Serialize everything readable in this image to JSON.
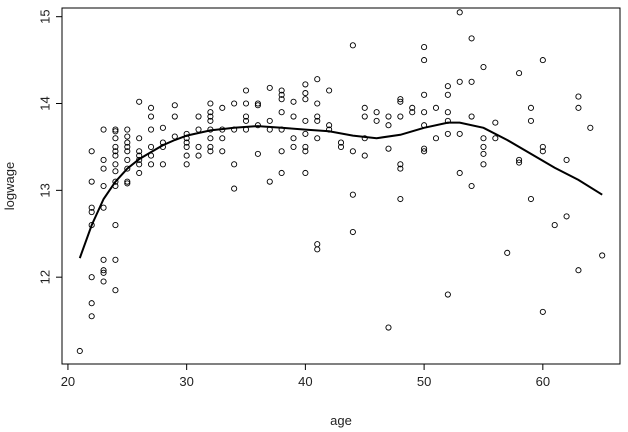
{
  "chart_data": {
    "type": "scatter",
    "title": "",
    "xlabel": "age",
    "ylabel": "logwage",
    "xlim": [
      19.5,
      66.5
    ],
    "ylim": [
      11,
      15.1
    ],
    "xticks": [
      20,
      30,
      40,
      50,
      60
    ],
    "yticks": [
      12,
      13,
      14,
      15
    ],
    "x_tick_labels": [
      "20",
      "30",
      "40",
      "50",
      "60"
    ],
    "y_tick_labels": [
      "12",
      "13",
      "14",
      "15"
    ],
    "grid": false,
    "legend": "none",
    "point_color": "#000000",
    "curve_color": "#000000",
    "points": [
      [
        21,
        11.15
      ],
      [
        22,
        13.45
      ],
      [
        22,
        13.1
      ],
      [
        22,
        12.8
      ],
      [
        22,
        12.75
      ],
      [
        22,
        12.6
      ],
      [
        22,
        12.0
      ],
      [
        22,
        11.7
      ],
      [
        22,
        11.55
      ],
      [
        23,
        13.7
      ],
      [
        23,
        13.35
      ],
      [
        23,
        13.25
      ],
      [
        23,
        13.05
      ],
      [
        23,
        12.8
      ],
      [
        23,
        12.2
      ],
      [
        23,
        12.08
      ],
      [
        23,
        12.05
      ],
      [
        23,
        11.95
      ],
      [
        24,
        13.7
      ],
      [
        24,
        13.68
      ],
      [
        24,
        13.6
      ],
      [
        24,
        13.5
      ],
      [
        24,
        13.45
      ],
      [
        24,
        13.4
      ],
      [
        24,
        13.3
      ],
      [
        24,
        13.22
      ],
      [
        24,
        13.1
      ],
      [
        24,
        13.05
      ],
      [
        24,
        12.6
      ],
      [
        24,
        12.2
      ],
      [
        24,
        11.85
      ],
      [
        25,
        13.7
      ],
      [
        25,
        13.62
      ],
      [
        25,
        13.55
      ],
      [
        25,
        13.5
      ],
      [
        25,
        13.45
      ],
      [
        25,
        13.35
      ],
      [
        25,
        13.25
      ],
      [
        25,
        13.1
      ],
      [
        25,
        13.08
      ],
      [
        26,
        14.02
      ],
      [
        26,
        13.6
      ],
      [
        26,
        13.45
      ],
      [
        26,
        13.4
      ],
      [
        26,
        13.35
      ],
      [
        26,
        13.3
      ],
      [
        26,
        13.2
      ],
      [
        27,
        13.95
      ],
      [
        27,
        13.85
      ],
      [
        27,
        13.7
      ],
      [
        27,
        13.5
      ],
      [
        27,
        13.4
      ],
      [
        27,
        13.3
      ],
      [
        28,
        13.72
      ],
      [
        28,
        13.55
      ],
      [
        28,
        13.5
      ],
      [
        28,
        13.3
      ],
      [
        29,
        13.98
      ],
      [
        29,
        13.85
      ],
      [
        29,
        13.62
      ],
      [
        30,
        13.65
      ],
      [
        30,
        13.6
      ],
      [
        30,
        13.55
      ],
      [
        30,
        13.5
      ],
      [
        30,
        13.4
      ],
      [
        30,
        13.3
      ],
      [
        31,
        13.85
      ],
      [
        31,
        13.7
      ],
      [
        31,
        13.5
      ],
      [
        31,
        13.4
      ],
      [
        32,
        14.0
      ],
      [
        32,
        13.9
      ],
      [
        32,
        13.85
      ],
      [
        32,
        13.8
      ],
      [
        32,
        13.7
      ],
      [
        32,
        13.6
      ],
      [
        32,
        13.5
      ],
      [
        32,
        13.45
      ],
      [
        33,
        13.95
      ],
      [
        33,
        13.7
      ],
      [
        33,
        13.6
      ],
      [
        33,
        13.45
      ],
      [
        34,
        14.0
      ],
      [
        34,
        13.7
      ],
      [
        34,
        13.3
      ],
      [
        34,
        13.02
      ],
      [
        35,
        14.15
      ],
      [
        35,
        14.0
      ],
      [
        35,
        13.85
      ],
      [
        35,
        13.8
      ],
      [
        35,
        13.7
      ],
      [
        36,
        14.0
      ],
      [
        36,
        13.98
      ],
      [
        36,
        13.75
      ],
      [
        36,
        13.42
      ],
      [
        37,
        14.18
      ],
      [
        37,
        13.8
      ],
      [
        37,
        13.7
      ],
      [
        37,
        13.1
      ],
      [
        38,
        14.15
      ],
      [
        38,
        14.1
      ],
      [
        38,
        14.05
      ],
      [
        38,
        13.9
      ],
      [
        38,
        13.7
      ],
      [
        38,
        13.45
      ],
      [
        38,
        13.2
      ],
      [
        39,
        14.02
      ],
      [
        39,
        13.85
      ],
      [
        39,
        13.6
      ],
      [
        39,
        13.5
      ],
      [
        40,
        14.22
      ],
      [
        40,
        14.12
      ],
      [
        40,
        14.05
      ],
      [
        40,
        13.8
      ],
      [
        40,
        13.65
      ],
      [
        40,
        13.5
      ],
      [
        40,
        13.45
      ],
      [
        40,
        13.2
      ],
      [
        41,
        14.28
      ],
      [
        41,
        14.0
      ],
      [
        41,
        13.85
      ],
      [
        41,
        13.8
      ],
      [
        41,
        13.6
      ],
      [
        41,
        12.38
      ],
      [
        41,
        12.32
      ],
      [
        42,
        14.15
      ],
      [
        42,
        13.75
      ],
      [
        42,
        13.7
      ],
      [
        43,
        13.55
      ],
      [
        43,
        13.5
      ],
      [
        44,
        14.67
      ],
      [
        44,
        13.45
      ],
      [
        44,
        12.95
      ],
      [
        44,
        12.52
      ],
      [
        45,
        13.95
      ],
      [
        45,
        13.85
      ],
      [
        45,
        13.6
      ],
      [
        45,
        13.4
      ],
      [
        46,
        13.9
      ],
      [
        46,
        13.8
      ],
      [
        47,
        13.85
      ],
      [
        47,
        13.75
      ],
      [
        47,
        13.48
      ],
      [
        47,
        11.42
      ],
      [
        48,
        14.05
      ],
      [
        48,
        14.02
      ],
      [
        48,
        13.85
      ],
      [
        48,
        13.3
      ],
      [
        48,
        13.25
      ],
      [
        48,
        12.9
      ],
      [
        49,
        13.95
      ],
      [
        49,
        13.9
      ],
      [
        50,
        14.65
      ],
      [
        50,
        14.5
      ],
      [
        50,
        14.1
      ],
      [
        50,
        13.9
      ],
      [
        50,
        13.75
      ],
      [
        50,
        13.48
      ],
      [
        50,
        13.45
      ],
      [
        51,
        13.95
      ],
      [
        51,
        13.6
      ],
      [
        52,
        14.2
      ],
      [
        52,
        14.1
      ],
      [
        52,
        13.9
      ],
      [
        52,
        13.8
      ],
      [
        52,
        13.65
      ],
      [
        52,
        11.8
      ],
      [
        53,
        15.05
      ],
      [
        53,
        14.25
      ],
      [
        53,
        13.65
      ],
      [
        53,
        13.2
      ],
      [
        54,
        14.75
      ],
      [
        54,
        14.25
      ],
      [
        54,
        13.85
      ],
      [
        54,
        13.05
      ],
      [
        55,
        14.42
      ],
      [
        55,
        13.6
      ],
      [
        55,
        13.5
      ],
      [
        55,
        13.42
      ],
      [
        55,
        13.3
      ],
      [
        56,
        13.78
      ],
      [
        56,
        13.6
      ],
      [
        57,
        12.28
      ],
      [
        58,
        14.35
      ],
      [
        58,
        13.35
      ],
      [
        58,
        13.32
      ],
      [
        59,
        13.95
      ],
      [
        59,
        13.8
      ],
      [
        59,
        12.9
      ],
      [
        60,
        14.5
      ],
      [
        60,
        13.5
      ],
      [
        60,
        13.45
      ],
      [
        60,
        11.6
      ],
      [
        61,
        12.6
      ],
      [
        62,
        13.35
      ],
      [
        62,
        12.7
      ],
      [
        63,
        14.08
      ],
      [
        63,
        13.95
      ],
      [
        63,
        12.08
      ],
      [
        64,
        13.72
      ],
      [
        65,
        12.25
      ]
    ],
    "smooth_curve": [
      [
        21,
        12.22
      ],
      [
        22,
        12.6
      ],
      [
        23,
        12.9
      ],
      [
        24,
        13.1
      ],
      [
        25,
        13.25
      ],
      [
        26,
        13.36
      ],
      [
        27,
        13.44
      ],
      [
        28,
        13.52
      ],
      [
        29,
        13.58
      ],
      [
        30,
        13.63
      ],
      [
        32,
        13.69
      ],
      [
        34,
        13.72
      ],
      [
        36,
        13.74
      ],
      [
        38,
        13.72
      ],
      [
        40,
        13.7
      ],
      [
        42,
        13.68
      ],
      [
        44,
        13.63
      ],
      [
        46,
        13.6
      ],
      [
        48,
        13.64
      ],
      [
        50,
        13.72
      ],
      [
        52,
        13.78
      ],
      [
        53,
        13.78
      ],
      [
        55,
        13.72
      ],
      [
        57,
        13.58
      ],
      [
        59,
        13.42
      ],
      [
        61,
        13.26
      ],
      [
        63,
        13.12
      ],
      [
        65,
        12.95
      ]
    ]
  }
}
